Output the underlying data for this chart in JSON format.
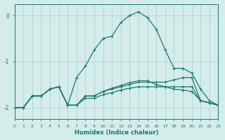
{
  "xlabel": "Humidex (Indice chaleur)",
  "bg_color": "#d4ecea",
  "grid_color": "#aacfcc",
  "line_color": "#1a7a6e",
  "x_values": [
    0,
    1,
    2,
    3,
    4,
    5,
    6,
    7,
    8,
    9,
    10,
    11,
    12,
    13,
    14,
    15,
    16,
    17,
    18,
    19,
    20,
    21,
    22,
    23
  ],
  "series1": [
    -2.0,
    -2.0,
    -1.75,
    -1.75,
    -1.6,
    -1.55,
    -1.95,
    -1.35,
    -1.1,
    -0.75,
    -0.5,
    -0.45,
    -0.15,
    0.0,
    0.08,
    -0.05,
    -0.3,
    -0.75,
    -1.15,
    -1.15,
    -1.25,
    -1.6,
    -1.85,
    -1.95
  ],
  "series2": [
    -2.0,
    -2.0,
    -1.75,
    -1.75,
    -1.6,
    -1.55,
    -1.95,
    -1.95,
    -1.75,
    -1.75,
    -1.65,
    -1.6,
    -1.55,
    -1.5,
    -1.45,
    -1.45,
    -1.45,
    -1.45,
    -1.4,
    -1.35,
    -1.35,
    -1.85,
    -1.9,
    -1.95
  ],
  "series3": [
    -2.0,
    -2.0,
    -1.75,
    -1.75,
    -1.6,
    -1.55,
    -1.95,
    -1.95,
    -1.75,
    -1.75,
    -1.65,
    -1.58,
    -1.52,
    -1.46,
    -1.42,
    -1.42,
    -1.5,
    -1.55,
    -1.6,
    -1.62,
    -1.65,
    -1.85,
    -1.9,
    -1.95
  ],
  "series4": [
    -2.0,
    -2.0,
    -1.75,
    -1.75,
    -1.6,
    -1.55,
    -1.95,
    -1.95,
    -1.8,
    -1.8,
    -1.72,
    -1.68,
    -1.62,
    -1.58,
    -1.55,
    -1.55,
    -1.55,
    -1.55,
    -1.55,
    -1.55,
    -1.55,
    -1.85,
    -1.9,
    -1.95
  ],
  "ylim": [
    -2.25,
    0.25
  ],
  "yticks": [
    -2,
    -1,
    0
  ],
  "xlim": [
    0,
    23
  ]
}
